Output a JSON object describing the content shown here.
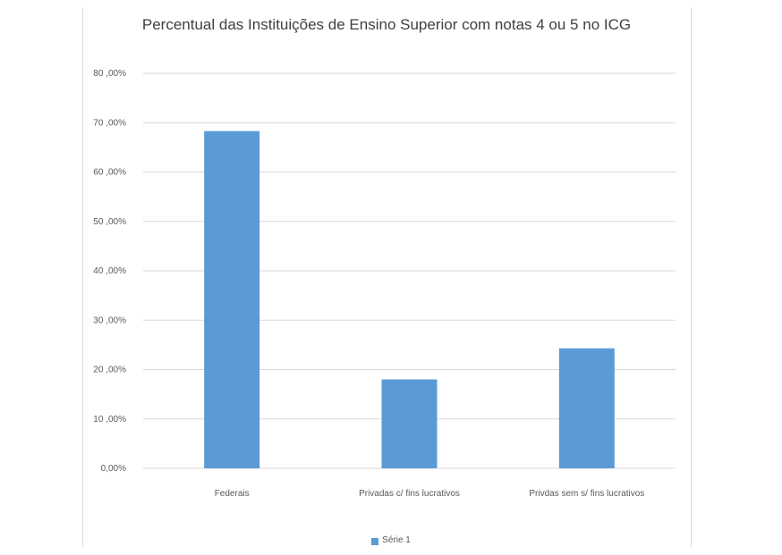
{
  "chart_data": {
    "type": "bar",
    "title": "Percentual das Instituições de Ensino Superior com notas 4 ou 5 no ICG",
    "xlabel": "",
    "ylabel": "",
    "categories": [
      "Federais",
      "Privadas c/ fins lucrativos",
      "Privdas sem s/ fins lucrativos"
    ],
    "series": [
      {
        "name": "Série 1",
        "values": [
          68.3,
          18.0,
          24.3
        ],
        "color": "#5b9bd5"
      }
    ],
    "ylim": [
      0,
      80
    ],
    "y_ticks": [
      0,
      10,
      20,
      30,
      40,
      50,
      60,
      70,
      80
    ],
    "y_tick_labels": [
      "0,00%",
      "10 ,00%",
      "20 ,00%",
      "30 ,00%",
      "40 ,00%",
      "50 ,00%",
      "60 ,00%",
      "70 ,00%",
      "80 ,00%"
    ],
    "grid": true,
    "legend_position": "bottom"
  }
}
